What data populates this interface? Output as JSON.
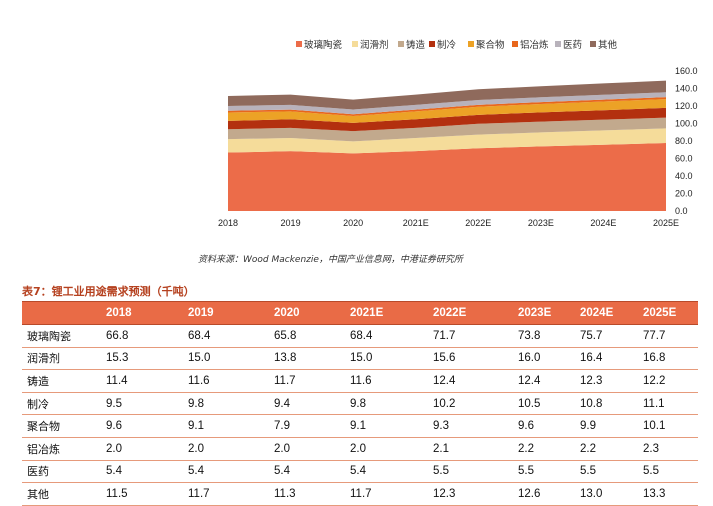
{
  "chart_data": {
    "type": "area",
    "stacked": true,
    "categories": [
      "2018",
      "2019",
      "2020",
      "2021E",
      "2022E",
      "2023E",
      "2024E",
      "2025E"
    ],
    "ylim": [
      0,
      160
    ],
    "yticks": [
      "0.0",
      "20.0",
      "40.0",
      "60.0",
      "80.0",
      "100.0",
      "120.0",
      "140.0",
      "160.0"
    ],
    "legend_position": "top",
    "series": [
      {
        "name": "玻璃陶瓷",
        "color": "#ec6c49",
        "values": [
          66.8,
          68.4,
          65.8,
          68.4,
          71.7,
          73.8,
          75.7,
          77.7
        ]
      },
      {
        "name": "润滑剂",
        "color": "#f5dc9a",
        "values": [
          15.3,
          15.0,
          13.8,
          15.0,
          15.6,
          16.0,
          16.4,
          16.8
        ]
      },
      {
        "name": "铸造",
        "color": "#c2a98d",
        "values": [
          11.4,
          11.6,
          11.7,
          11.6,
          12.4,
          12.4,
          12.3,
          12.2
        ]
      },
      {
        "name": "制冷",
        "color": "#b3300f",
        "values": [
          9.5,
          9.8,
          9.4,
          9.8,
          10.2,
          10.5,
          10.8,
          11.1
        ]
      },
      {
        "name": "聚合物",
        "color": "#eca226",
        "values": [
          9.6,
          9.1,
          7.9,
          9.1,
          9.3,
          9.6,
          9.9,
          10.1
        ]
      },
      {
        "name": "铝冶炼",
        "color": "#e8661c",
        "values": [
          2.0,
          2.0,
          2.0,
          2.0,
          2.1,
          2.2,
          2.2,
          2.3
        ]
      },
      {
        "name": "医药",
        "color": "#b8b2bb",
        "values": [
          5.4,
          5.4,
          5.4,
          5.4,
          5.5,
          5.5,
          5.5,
          5.5
        ]
      },
      {
        "name": "其他",
        "color": "#8f6a5c",
        "values": [
          11.5,
          11.7,
          11.3,
          11.7,
          12.3,
          12.6,
          13.0,
          13.3
        ]
      }
    ]
  },
  "source": "资料来源：Wood Mackenzie，中国产业信息网，中港证券研究所",
  "table": {
    "title": "表7：锂工业用途需求预测（千吨）",
    "headers": [
      "",
      "2018",
      "2019",
      "2020",
      "2021E",
      "2022E",
      "2023E",
      "2024E",
      "2025E"
    ],
    "rows": [
      {
        "label": "玻璃陶瓷",
        "values": [
          "66.8",
          "68.4",
          "65.8",
          "68.4",
          "71.7",
          "73.8",
          "75.7",
          "77.7"
        ]
      },
      {
        "label": "润滑剂",
        "values": [
          "15.3",
          "15.0",
          "13.8",
          "15.0",
          "15.6",
          "16.0",
          "16.4",
          "16.8"
        ]
      },
      {
        "label": "铸造",
        "values": [
          "11.4",
          "11.6",
          "11.7",
          "11.6",
          "12.4",
          "12.4",
          "12.3",
          "12.2"
        ]
      },
      {
        "label": "制冷",
        "values": [
          "9.5",
          "9.8",
          "9.4",
          "9.8",
          "10.2",
          "10.5",
          "10.8",
          "11.1"
        ]
      },
      {
        "label": "聚合物",
        "values": [
          "9.6",
          "9.1",
          "7.9",
          "9.1",
          "9.3",
          "9.6",
          "9.9",
          "10.1"
        ]
      },
      {
        "label": "铝冶炼",
        "values": [
          "2.0",
          "2.0",
          "2.0",
          "2.0",
          "2.1",
          "2.2",
          "2.2",
          "2.3"
        ]
      },
      {
        "label": "医药",
        "values": [
          "5.4",
          "5.4",
          "5.4",
          "5.4",
          "5.5",
          "5.5",
          "5.5",
          "5.5"
        ]
      },
      {
        "label": "其他",
        "values": [
          "11.5",
          "11.7",
          "11.3",
          "11.7",
          "12.3",
          "12.6",
          "13.0",
          "13.3"
        ]
      }
    ]
  }
}
